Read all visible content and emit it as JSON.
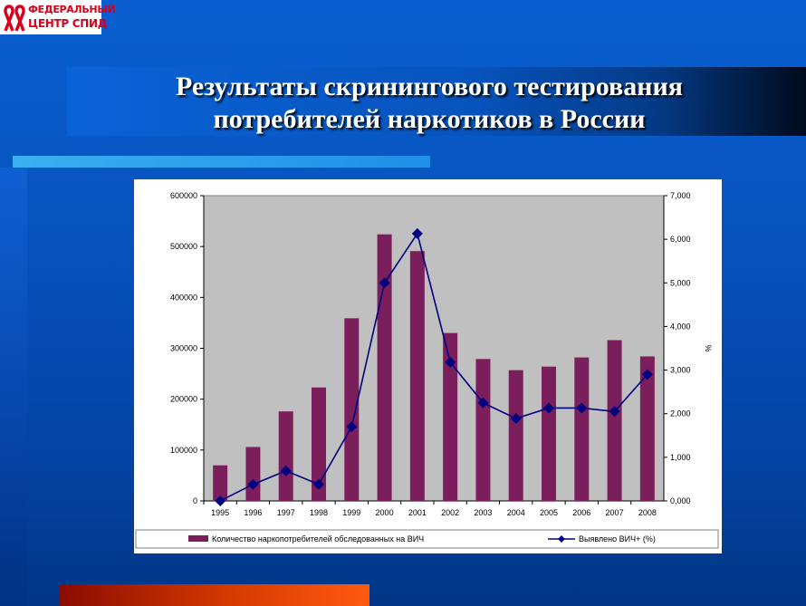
{
  "logo": {
    "line1": "ФЕДЕРАЛЬНЫЙ",
    "line2": "ЦЕНТР СПИД"
  },
  "slide": {
    "title_line1": "Результаты скринингового тестирования",
    "title_line2": "потребителей наркотиков в России"
  },
  "colors": {
    "bar": "#7b1e5c",
    "line": "#000080",
    "plot_bg": "#c0c0c0",
    "logo_red": "#d8001b"
  },
  "chart_data": {
    "type": "bar",
    "categories": [
      "1995",
      "1996",
      "1997",
      "1998",
      "1999",
      "2000",
      "2001",
      "2002",
      "2003",
      "2004",
      "2005",
      "2006",
      "2007",
      "2008"
    ],
    "series": [
      {
        "name": "Количество наркопотребителей обследованных на ВИЧ",
        "type": "bar",
        "axis": "left",
        "values": [
          70000,
          106000,
          176000,
          223000,
          359000,
          524000,
          491000,
          330000,
          279000,
          257000,
          264000,
          282000,
          316000,
          284000
        ]
      },
      {
        "name": "Выявлено ВИЧ+  (%)",
        "type": "line",
        "axis": "right",
        "values": [
          0.0,
          0.38,
          0.69,
          0.38,
          1.7,
          5.0,
          6.13,
          3.18,
          2.25,
          1.89,
          2.13,
          2.13,
          2.05,
          2.9
        ]
      }
    ],
    "y_left": {
      "min": 0,
      "max": 600000,
      "ticks": [
        "0",
        "100000",
        "200000",
        "300000",
        "400000",
        "500000",
        "600000"
      ]
    },
    "y_right": {
      "min": 0,
      "max": 7,
      "label": "%",
      "ticks": [
        "0,000",
        "1,000",
        "2,000",
        "3,000",
        "4,000",
        "5,000",
        "6,000",
        "7,000"
      ]
    },
    "legend_position": "bottom"
  }
}
